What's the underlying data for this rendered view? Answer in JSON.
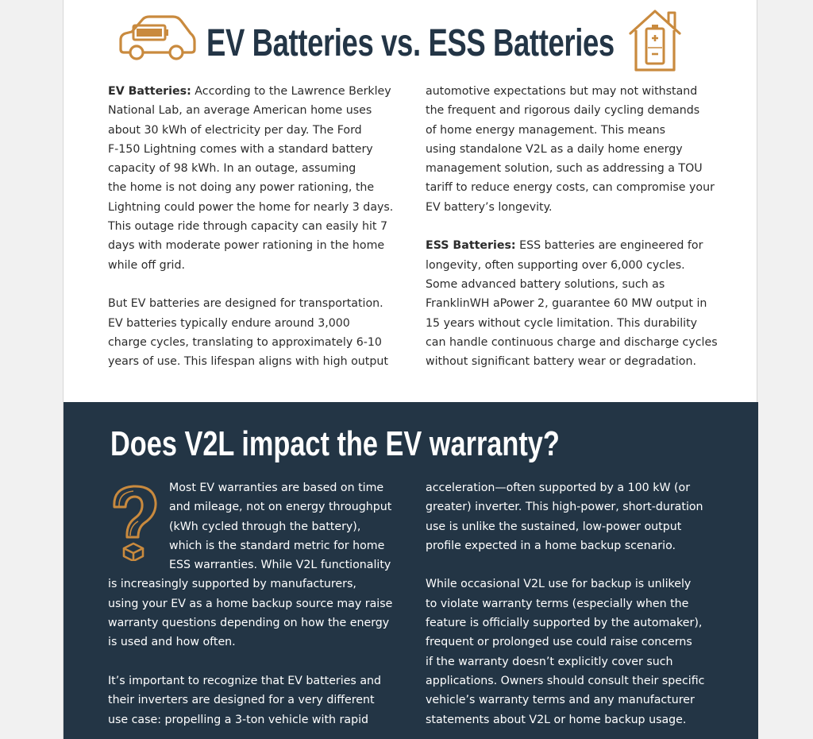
{
  "header": {
    "title": "EV Batteries vs. ESS Batteries",
    "car_icon": "ev-car-battery-icon",
    "home_icon": "home-battery-icon",
    "accent_color": "#c98a3e",
    "title_color": "#233546"
  },
  "comparison": {
    "ev_label": "EV Batteries:",
    "ev_intro_lines": [
      " According to the Lawrence Berkley",
      "National Lab, an average American home uses",
      "about 30 kWh of electricity per day. The Ford",
      "F-150 Lightning comes with a standard battery",
      "capacity of 98 kWh. In an outage, assuming",
      "the home is not doing any power rationing, the",
      "Lightning could power the home for nearly 3 days.",
      "This outage ride through capacity can easily hit 7",
      "days with moderate power rationing in the home",
      "while off grid."
    ],
    "ev_design_lines": [
      "But EV batteries are designed for transportation.",
      "EV batteries typically endure around 3,000",
      "charge cycles, translating to approximately 6-10",
      "years of use. This lifespan aligns with high output",
      "automotive expectations but may not withstand",
      "the frequent and rigorous daily cycling demands",
      "of home energy management. This means",
      "using standalone V2L as a daily home energy",
      "management solution, such as addressing a TOU",
      "tariff to reduce energy costs, can compromise your",
      "EV battery’s longevity."
    ],
    "ess_label": "ESS Batteries:",
    "ess_lines": [
      " ESS batteries are engineered for",
      "longevity, often supporting over 6,000 cycles.",
      "Some advanced battery solutions, such as",
      "FranklinWH aPower 2, guarantee 60 MW output in",
      "15 years without cycle limitation. This durability",
      "can handle continuous charge and discharge cycles",
      "without significant battery wear or degradation."
    ]
  },
  "warranty": {
    "heading": "Does V2L impact the EV warranty?",
    "question_icon": "question-mark-icon",
    "background_color": "#233545",
    "para1_indented_lines": [
      "Most EV warranties are based on time",
      "and mileage, not on energy throughput",
      "(kWh cycled through the battery),",
      "which is the standard metric for home",
      "ESS warranties. While V2L functionality"
    ],
    "para1_lines": [
      "is increasingly supported by manufacturers,",
      "using your EV as a home backup source may raise",
      "warranty questions depending on how the energy",
      "is used and how often."
    ],
    "para2_lines": [
      "It’s important to recognize that EV batteries and",
      "their inverters are designed for a very different",
      "use case: propelling a 3-ton vehicle with rapid",
      "acceleration—often supported by a 100 kW (or",
      "greater) inverter. This high-power, short-duration",
      "use is unlike the sustained, low-power output",
      "profile expected in a home backup scenario."
    ],
    "para3_lines": [
      "While occasional V2L use for backup is unlikely",
      "to violate warranty terms (especially when the",
      "feature is officially supported by the automaker),",
      "frequent or prolonged use could raise concerns",
      "if the warranty doesn’t explicitly cover such",
      "applications. Owners should consult their specific",
      "vehicle’s warranty terms and any manufacturer",
      "statements about V2L or home backup usage."
    ]
  }
}
